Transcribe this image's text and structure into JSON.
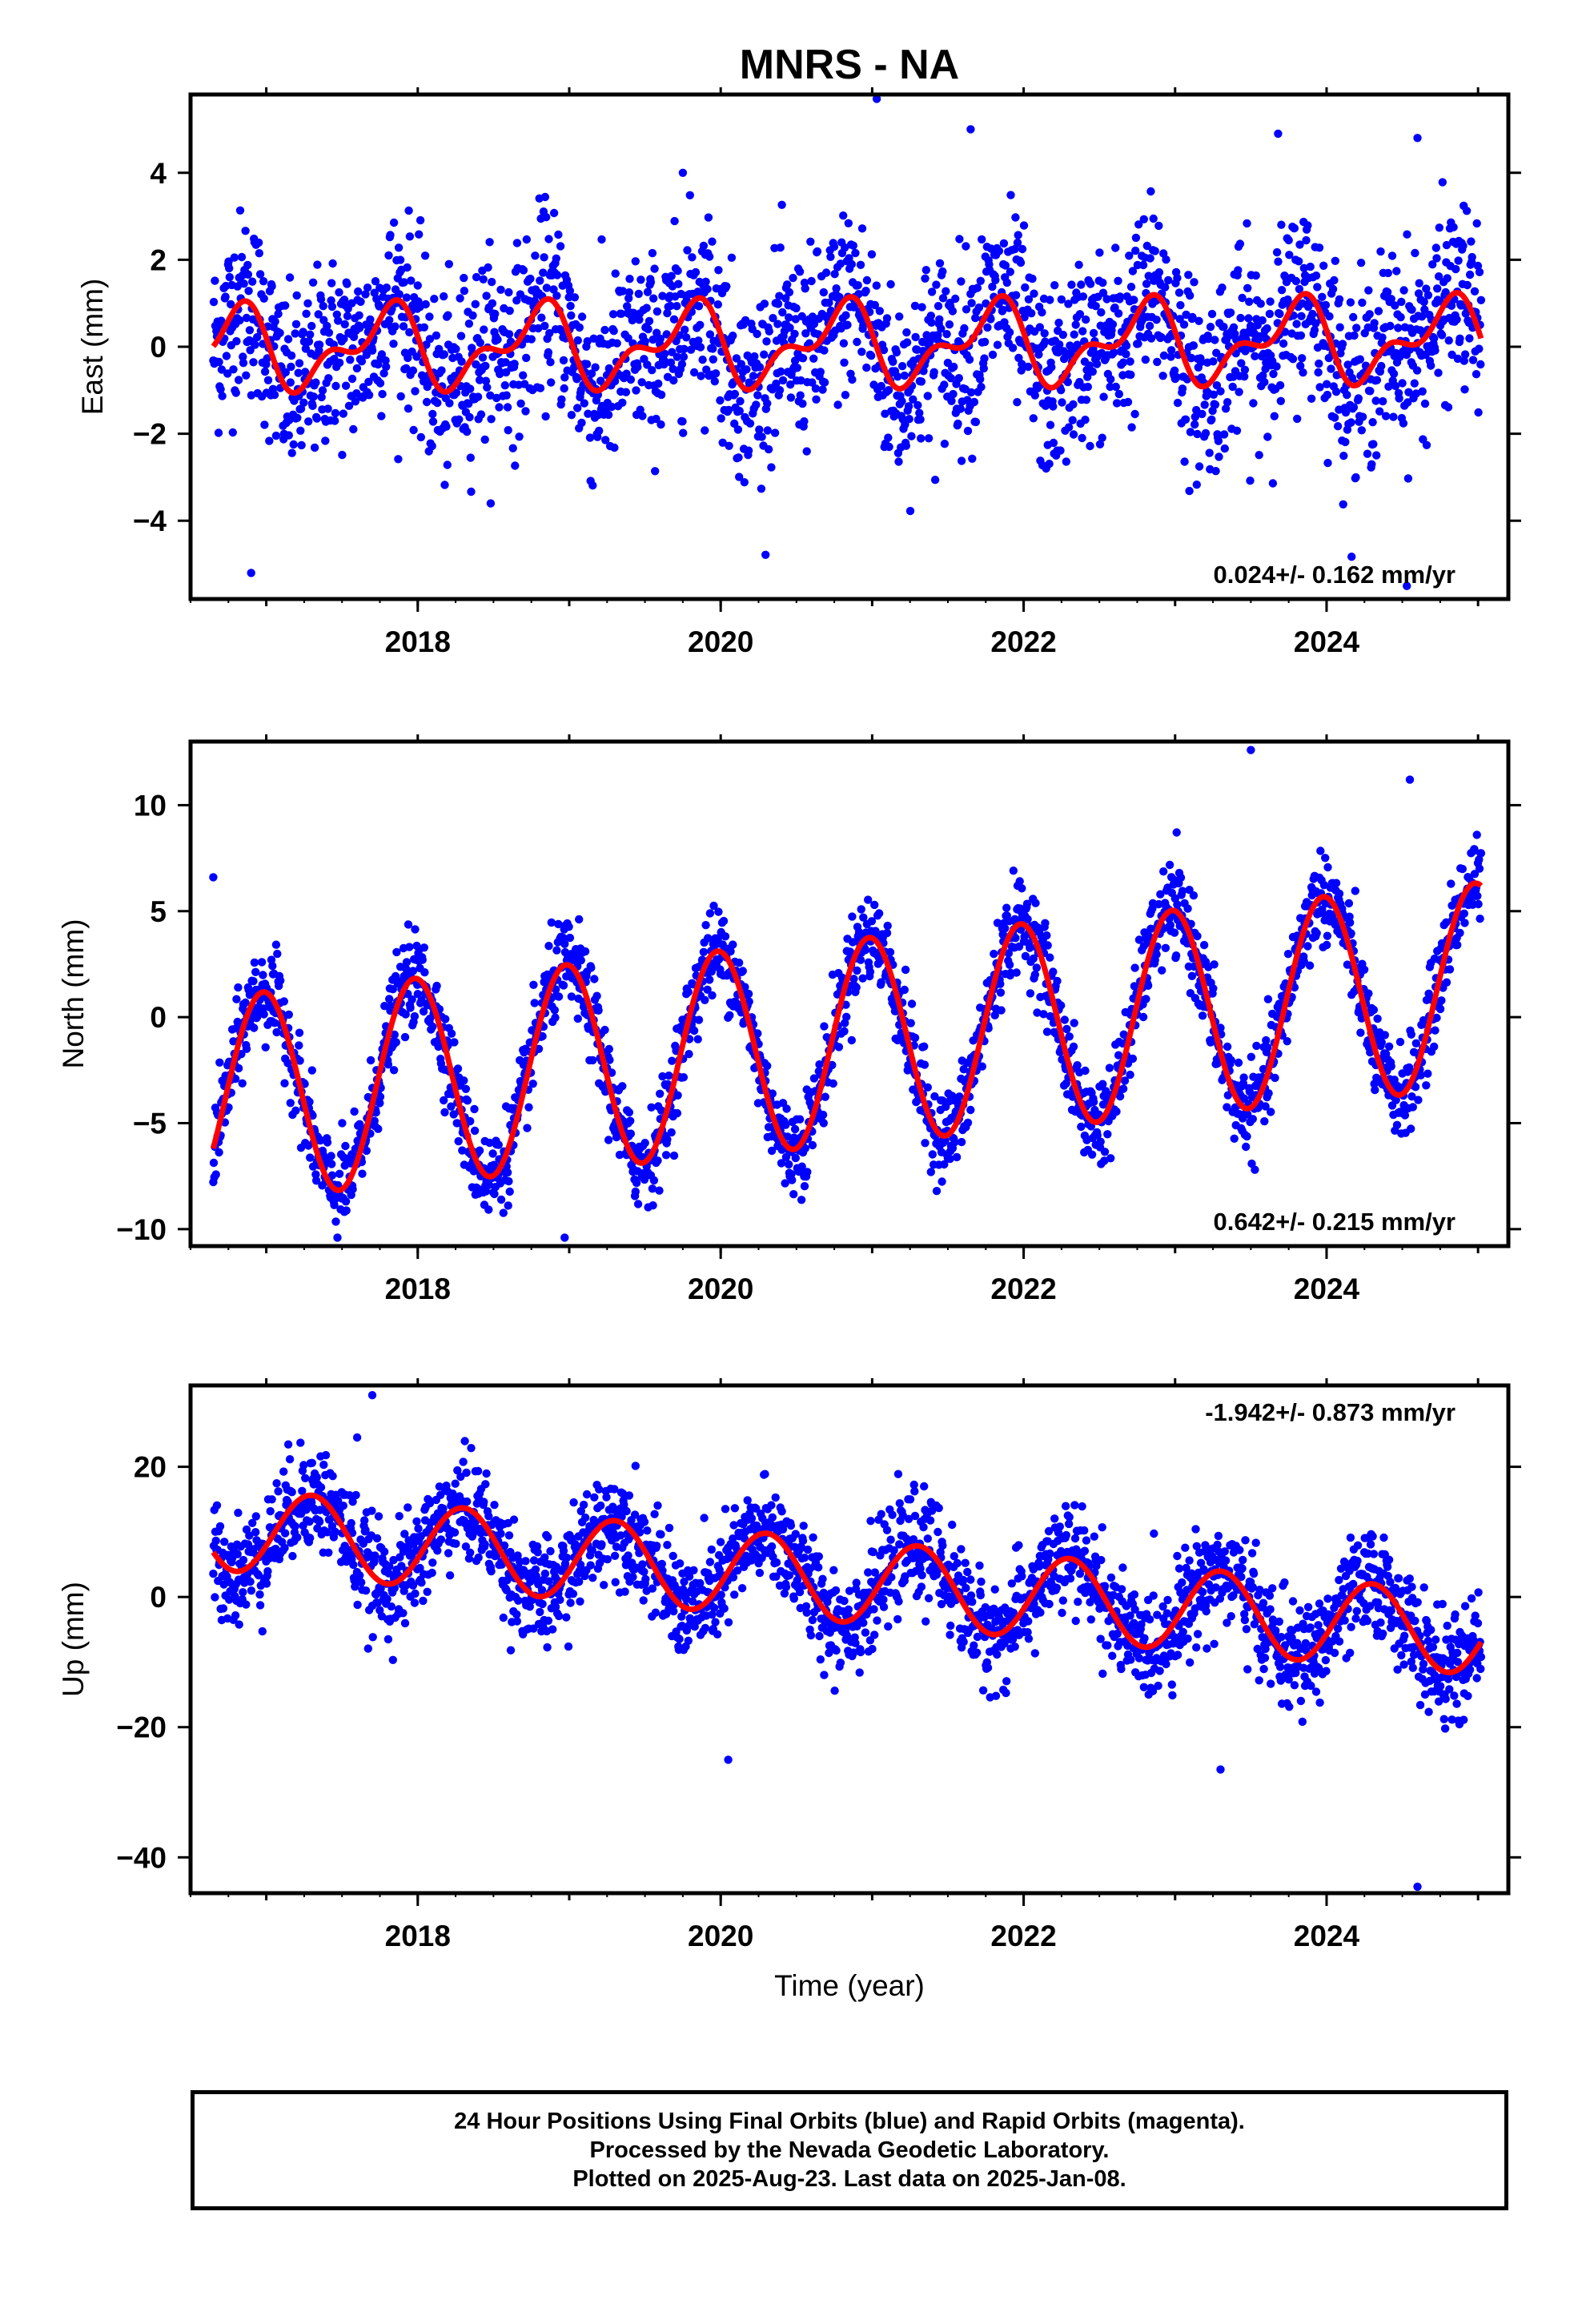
{
  "figure": {
    "title": "MNRS - NA",
    "xlabel": "Time (year)"
  },
  "chart_data": [
    {
      "type": "scatter",
      "panel": "east",
      "ylabel": "East (mm)",
      "xlim": [
        2016.5,
        2025.2
      ],
      "ylim": [
        -5.8,
        5.8
      ],
      "yticks": [
        -4,
        -2,
        0,
        2,
        4
      ],
      "yticklabels": [
        "−4",
        "−2",
        "0",
        "2",
        "4"
      ],
      "xticks": [
        2018,
        2020,
        2022,
        2024
      ],
      "xticklabels": [
        "2018",
        "2020",
        "2022",
        "2024"
      ],
      "grid": false,
      "rate_label": "0.024+/- 0.162 mm/yr",
      "rate_position": "bottom-right",
      "data_range": [
        2016.65,
        2025.02
      ],
      "scatter_color": "#0000ff",
      "model_color": "#ff0000",
      "model": {
        "trend": 0.024,
        "annual": [
          0.15,
          -0.75
        ],
        "semiannual": [
          0.1,
          -0.45
        ],
        "offset": 0.05
      },
      "noise_sd": 1.05,
      "outliers": [
        [
          2021.03,
          5.7
        ],
        [
          2016.9,
          -5.2
        ],
        [
          2021.65,
          5.0
        ],
        [
          2023.68,
          4.9
        ],
        [
          2024.6,
          4.8
        ],
        [
          2024.53,
          -5.5
        ],
        [
          2019.75,
          4.0
        ]
      ]
    },
    {
      "type": "scatter",
      "panel": "north",
      "ylabel": "North (mm)",
      "xlim": [
        2016.5,
        2025.2
      ],
      "ylim": [
        -10.8,
        13.0
      ],
      "yticks": [
        -10,
        -5,
        0,
        5,
        10
      ],
      "yticklabels": [
        "−10",
        "−5",
        "0",
        "5",
        "10"
      ],
      "xticks": [
        2018,
        2020,
        2022,
        2024
      ],
      "xticklabels": [
        "2018",
        "2020",
        "2022",
        "2024"
      ],
      "grid": false,
      "rate_label": "0.642+/- 0.215 mm/yr",
      "rate_position": "bottom-right",
      "data_range": [
        2016.65,
        2025.02
      ],
      "scatter_color": "#0000ff",
      "model_color": "#ff0000",
      "model": {
        "trend": 0.642,
        "annual": [
          4.8,
          -0.6
        ],
        "semiannual": [
          0.0,
          0.0
        ],
        "offset": -1.2
      },
      "noise_sd": 1.05,
      "outliers": [
        [
          2023.5,
          12.6
        ],
        [
          2018.97,
          -10.4
        ],
        [
          2016.65,
          6.6
        ],
        [
          2024.55,
          11.2
        ]
      ]
    },
    {
      "type": "scatter",
      "panel": "up",
      "ylabel": "Up (mm)",
      "xlim": [
        2016.5,
        2025.2
      ],
      "ylim": [
        -45.5,
        32.5
      ],
      "yticks": [
        -40,
        -20,
        0,
        20
      ],
      "yticklabels": [
        "−40",
        "−20",
        "0",
        "20"
      ],
      "xticks": [
        2018,
        2020,
        2022,
        2024
      ],
      "xticklabels": [
        "2018",
        "2020",
        "2022",
        "2024"
      ],
      "grid": false,
      "rate_label": "-1.942+/- 0.873 mm/yr",
      "rate_position": "top-right",
      "data_range": [
        2016.65,
        2025.02
      ],
      "scatter_color": "#0000ff",
      "model_color": "#ff0000",
      "model": {
        "trend": -1.942,
        "annual": [
          -2.0,
          6.0
        ],
        "semiannual": [
          0.0,
          0.0
        ],
        "offset": 2.5
      },
      "noise_sd": 4.0,
      "outliers": [
        [
          2017.7,
          31.0
        ],
        [
          2024.6,
          -44.5
        ],
        [
          2023.3,
          -26.5
        ],
        [
          2020.05,
          -25.0
        ],
        [
          2017.6,
          24.5
        ]
      ]
    }
  ],
  "footer": {
    "line1": "24 Hour Positions Using Final Orbits (blue) and Rapid Orbits (magenta).",
    "line2": "Processed by the Nevada Geodetic Laboratory.",
    "line3": "Plotted on 2025-Aug-23. Last data on 2025-Jan-08."
  }
}
